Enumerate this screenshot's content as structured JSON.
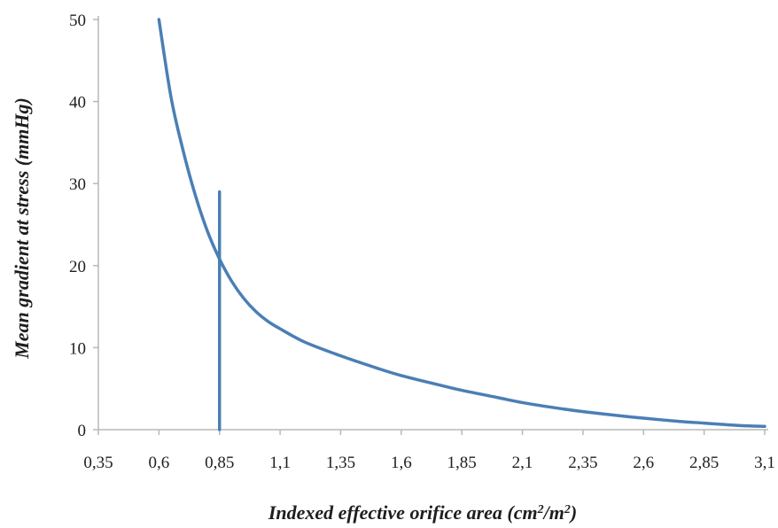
{
  "chart_data": {
    "type": "line",
    "title": "",
    "xlabel_parts": [
      "Indexed effective orifice area (cm",
      "2",
      "/m",
      "2",
      ")"
    ],
    "ylabel": "Mean gradient at stress (mmHg)",
    "xlim": [
      0.35,
      3.1
    ],
    "ylim": [
      0,
      50
    ],
    "x_ticks": [
      0.35,
      0.6,
      0.85,
      1.1,
      1.35,
      1.6,
      1.85,
      2.1,
      2.35,
      2.6,
      2.85,
      3.1
    ],
    "x_tick_labels": [
      "0,35",
      "0,6",
      "0,85",
      "1,1",
      "1,35",
      "1,6",
      "1,85",
      "2,1",
      "2,35",
      "2,6",
      "2,85",
      "3,1"
    ],
    "y_ticks": [
      0,
      10,
      20,
      30,
      40,
      50
    ],
    "y_tick_labels": [
      "0",
      "10",
      "20",
      "30",
      "40",
      "50"
    ],
    "grid": false,
    "legend": "none",
    "series": [
      {
        "color": "#4a7fb5",
        "x": [
          0.6,
          0.65,
          0.7,
          0.75,
          0.8,
          0.85,
          0.9,
          0.95,
          1.0,
          1.05,
          1.1,
          1.2,
          1.35,
          1.5,
          1.6,
          1.75,
          1.85,
          2.0,
          2.1,
          2.25,
          2.35,
          2.5,
          2.6,
          2.75,
          2.85,
          3.0,
          3.1
        ],
        "y": [
          50,
          40.5,
          34,
          28.6,
          24.2,
          20.8,
          18.1,
          16.0,
          14.4,
          13.2,
          12.3,
          10.7,
          9.0,
          7.5,
          6.6,
          5.5,
          4.8,
          3.9,
          3.3,
          2.6,
          2.2,
          1.7,
          1.4,
          1.0,
          0.8,
          0.5,
          0.4
        ]
      },
      {
        "color": "#4a7fb5",
        "x": [
          0.85,
          0.85
        ],
        "y": [
          0,
          29
        ]
      }
    ]
  }
}
